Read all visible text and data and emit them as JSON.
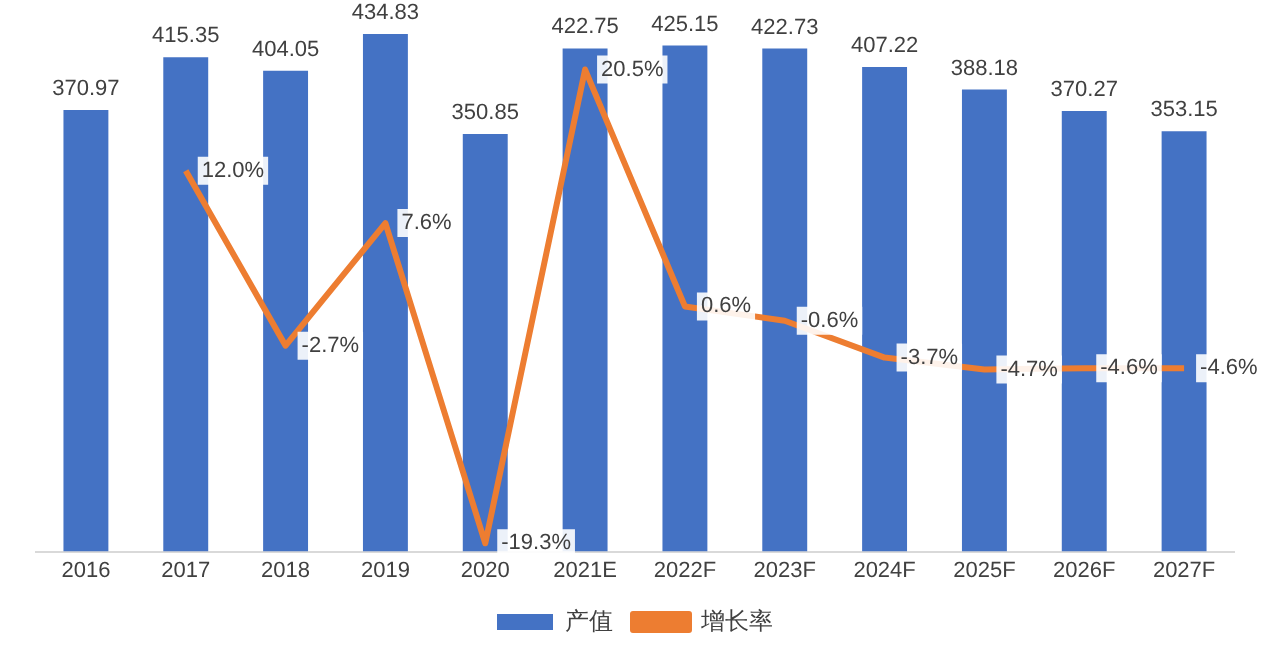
{
  "chart_data": {
    "type": "bar",
    "categories": [
      "2016",
      "2017",
      "2018",
      "2019",
      "2020",
      "2021E",
      "2022F",
      "2023F",
      "2024F",
      "2025F",
      "2026F",
      "2027F"
    ],
    "series": [
      {
        "name": "产值",
        "color": "#4472c4",
        "values": [
          370.97,
          415.35,
          404.05,
          434.83,
          350.85,
          422.75,
          425.15,
          422.73,
          407.22,
          388.18,
          370.27,
          353.15
        ],
        "value_labels": [
          "370.97",
          "415.35",
          "404.05",
          "434.83",
          "350.85",
          "422.75",
          "425.15",
          "422.73",
          "407.22",
          "388.18",
          "370.27",
          "353.15"
        ]
      },
      {
        "name": "增长率",
        "type": "line",
        "axis": "y2",
        "color": "#ed7d31",
        "marker": "none",
        "values": [
          null,
          12.0,
          -2.7,
          7.6,
          -19.3,
          20.5,
          0.6,
          -0.6,
          -3.7,
          -4.7,
          -4.6,
          -4.6
        ],
        "value_labels": [
          null,
          "12.0%",
          "-2.7%",
          "7.6%",
          "-19.3%",
          "20.5%",
          "0.6%",
          "-0.6%",
          "-3.7%",
          "-4.7%",
          "-4.6%",
          "-4.6%"
        ]
      }
    ],
    "tick_labels": "x",
    "grid": false,
    "legend": "bottom"
  }
}
